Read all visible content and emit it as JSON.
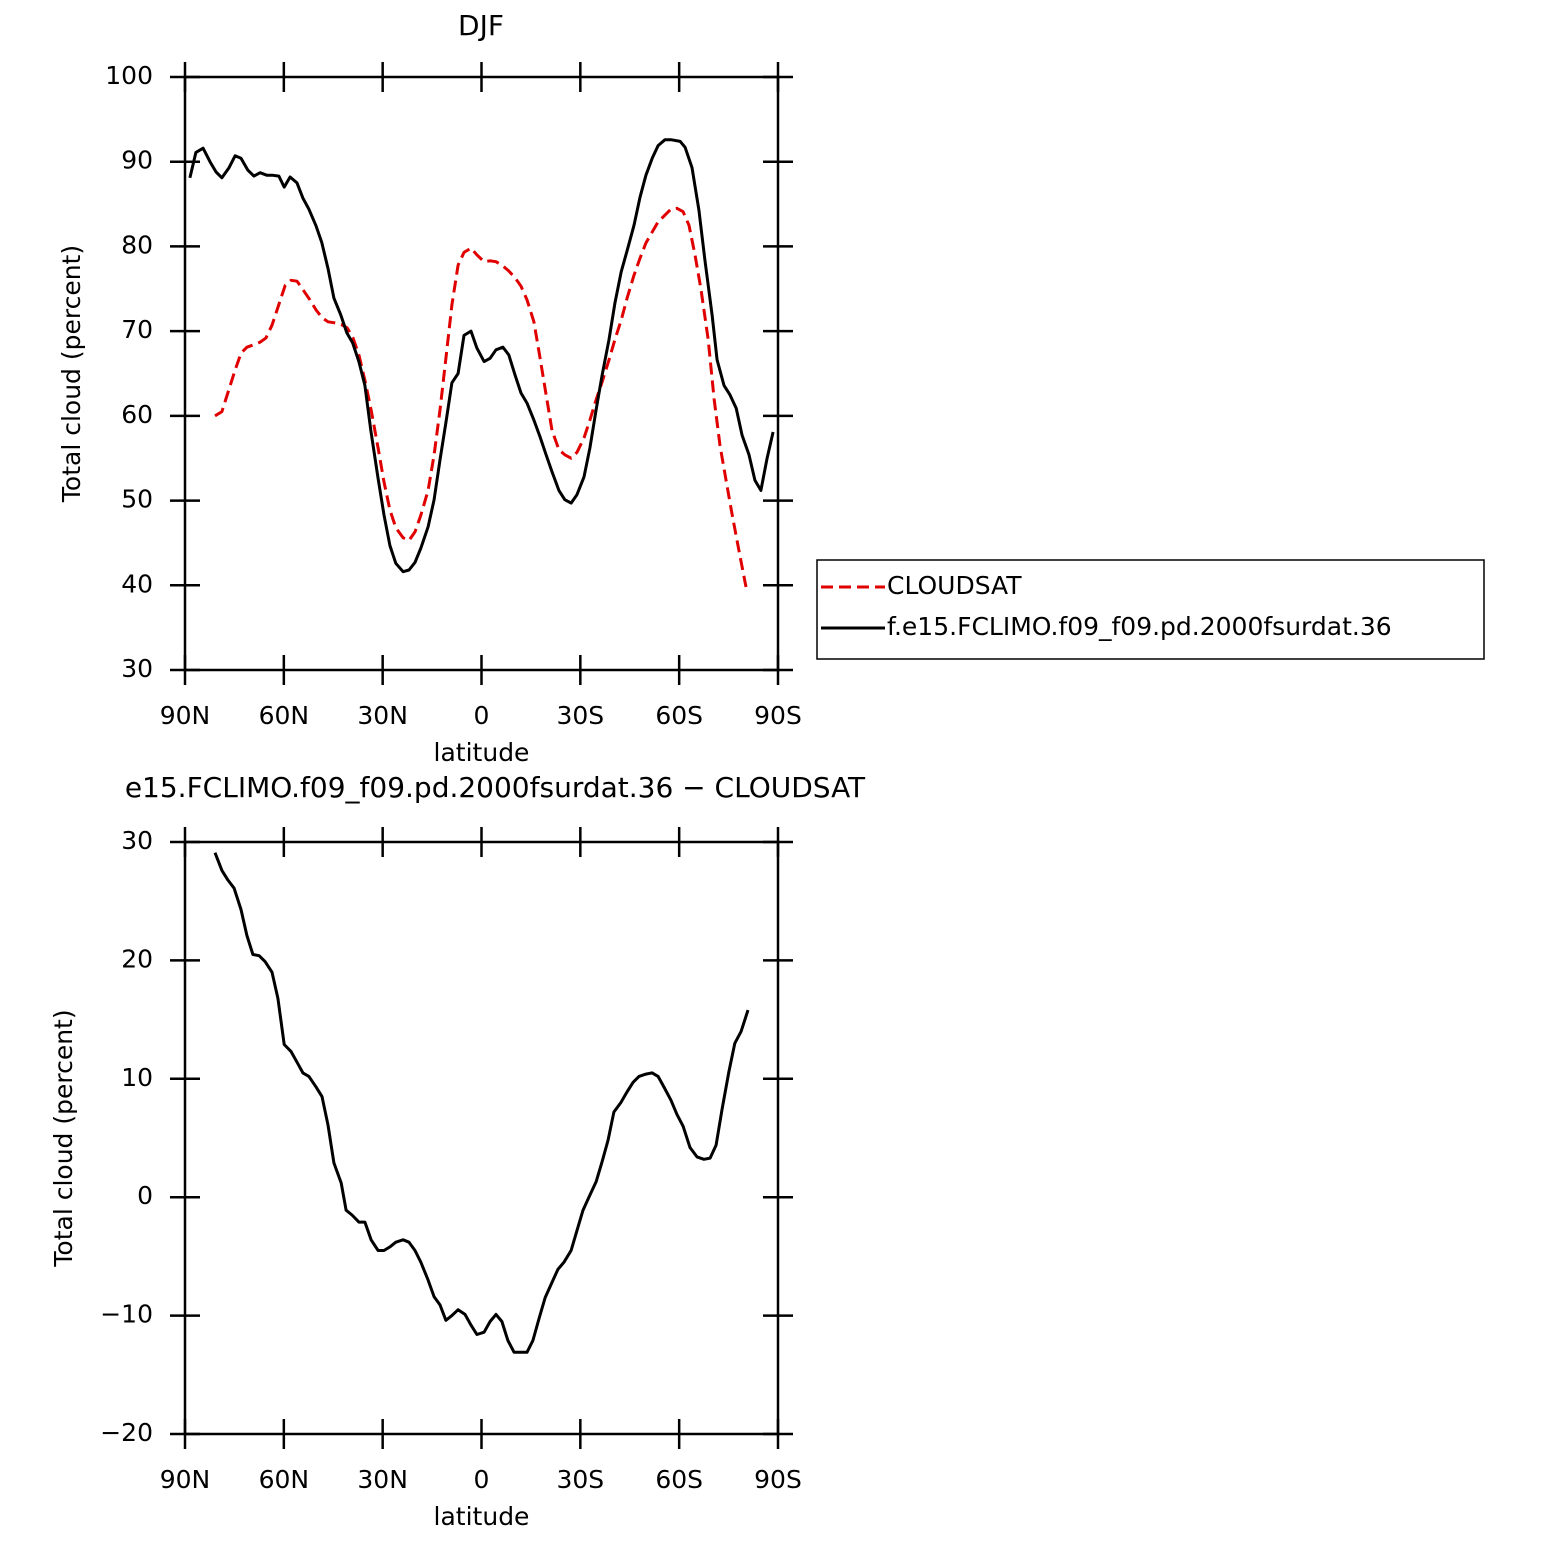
{
  "chart_data": [
    {
      "type": "line",
      "title": "DJF",
      "xlabel": "latitude",
      "ylabel": "Total cloud (percent)",
      "xlim": [
        90,
        -90
      ],
      "xticks": [
        {
          "value": 90,
          "label": "90N"
        },
        {
          "value": 60,
          "label": "60N"
        },
        {
          "value": 30,
          "label": "30N"
        },
        0,
        {
          "value": -30,
          "label": "30S"
        },
        {
          "value": -60,
          "label": "60S"
        },
        {
          "value": -90,
          "label": "90S"
        }
      ],
      "ylim": [
        30,
        100
      ],
      "yticks": [
        30,
        40,
        50,
        60,
        70,
        80,
        90,
        100
      ],
      "legend": "right",
      "series": [
        {
          "name": "CLOUDSAT",
          "color": "#e00000",
          "style": "dashed",
          "x": [
            80.9,
            78.8,
            77.0,
            74.8,
            73.0,
            71.2,
            69.1,
            67.2,
            65.4,
            63.6,
            61.8,
            59.6,
            57.8,
            56.0,
            54.2,
            52.1,
            50.2,
            48.4,
            46.6,
            44.8,
            42.6,
            40.8,
            39.0,
            37.2,
            35.4,
            33.5,
            31.4,
            29.6,
            27.8,
            26.0,
            23.8,
            22.0,
            20.2,
            18.4,
            16.2,
            14.4,
            12.6,
            10.8,
            9.0,
            7.1,
            5.3,
            3.2,
            1.4,
            -0.8,
            -2.6,
            -4.4,
            -6.5,
            -8.3,
            -10.2,
            -12.0,
            -13.8,
            -15.9,
            -17.8,
            -19.6,
            -21.4,
            -23.5,
            -25.3,
            -27.2,
            -29.0,
            -31.1,
            -32.9,
            -34.8,
            -36.6,
            -38.7,
            -40.5,
            -42.4,
            -44.2,
            -46.3,
            -48.1,
            -49.9,
            -51.8,
            -53.6,
            -55.7,
            -57.5,
            -59.3,
            -61.2,
            -63.0,
            -64.8,
            -66.6,
            -68.8,
            -70.6,
            -72.4,
            -74.2,
            -76.0,
            -78.2,
            -80.3
          ],
          "values": [
            60.0,
            60.5,
            62.7,
            65.4,
            67.4,
            68.1,
            68.4,
            68.7,
            69.2,
            70.7,
            72.8,
            75.4,
            76.0,
            75.9,
            74.9,
            73.7,
            72.5,
            71.6,
            71.1,
            71.0,
            70.8,
            70.4,
            69.2,
            67.2,
            64.2,
            60.7,
            56.2,
            52.2,
            48.9,
            46.8,
            45.6,
            45.3,
            46.3,
            48.3,
            51.2,
            55.4,
            60.7,
            66.8,
            73.1,
            77.8,
            79.3,
            79.8,
            79.0,
            78.2,
            78.3,
            78.2,
            77.7,
            77.1,
            76.3,
            75.3,
            73.7,
            71.1,
            66.8,
            62.5,
            58.3,
            56.0,
            55.4,
            55.0,
            55.7,
            57.4,
            59.5,
            61.9,
            64.0,
            66.6,
            69.0,
            71.3,
            73.9,
            76.6,
            78.6,
            80.4,
            81.7,
            82.9,
            83.7,
            84.4,
            84.5,
            84.1,
            82.5,
            79.0,
            75.0,
            69.0,
            62.0,
            56.5,
            52.5,
            48.5,
            44.0,
            39.8
          ]
        },
        {
          "name": "f.e15.FCLIMO.f09_f09.pd.2000fsurdat.36",
          "color": "#000000",
          "style": "solid",
          "x": [
            88.5,
            86.7,
            84.5,
            82.4,
            80.6,
            78.8,
            76.6,
            74.8,
            73.0,
            70.9,
            69.1,
            67.2,
            65.1,
            63.3,
            61.5,
            59.9,
            58.1,
            56.0,
            54.2,
            52.4,
            50.3,
            48.5,
            46.6,
            44.8,
            42.7,
            40.9,
            39.1,
            37.2,
            35.4,
            33.6,
            31.4,
            29.6,
            27.8,
            26.0,
            23.8,
            22.0,
            20.2,
            18.4,
            16.2,
            14.4,
            12.6,
            10.8,
            9.0,
            7.1,
            5.3,
            3.2,
            1.4,
            -0.8,
            -2.6,
            -4.4,
            -6.5,
            -8.3,
            -10.2,
            -12.0,
            -13.8,
            -15.9,
            -17.8,
            -19.6,
            -21.4,
            -23.5,
            -25.3,
            -27.2,
            -29.0,
            -31.1,
            -32.9,
            -34.8,
            -36.6,
            -38.7,
            -40.5,
            -42.4,
            -44.2,
            -46.3,
            -48.1,
            -49.9,
            -51.8,
            -53.6,
            -55.7,
            -57.5,
            -60.3,
            -61.8,
            -63.9,
            -66.0,
            -67.8,
            -70.0,
            -71.5,
            -73.6,
            -75.4,
            -77.3,
            -79.1,
            -81.2,
            -83.0,
            -84.8,
            -86.7,
            -88.5
          ],
          "values": [
            88.1,
            91.1,
            91.6,
            90.0,
            88.8,
            88.1,
            89.3,
            90.7,
            90.4,
            89.0,
            88.3,
            88.7,
            88.4,
            88.4,
            88.3,
            87.0,
            88.2,
            87.5,
            85.7,
            84.4,
            82.5,
            80.5,
            77.4,
            73.9,
            71.9,
            69.8,
            68.6,
            66.4,
            63.6,
            58.3,
            52.6,
            48.3,
            44.7,
            42.6,
            41.6,
            41.8,
            42.7,
            44.4,
            46.9,
            50.1,
            54.8,
            59.2,
            63.9,
            65.0,
            69.5,
            70.0,
            68.0,
            66.4,
            66.8,
            67.8,
            68.1,
            67.2,
            64.8,
            62.7,
            61.5,
            59.5,
            57.5,
            55.4,
            53.4,
            51.2,
            50.1,
            49.7,
            50.7,
            52.8,
            56.2,
            60.7,
            64.8,
            69.0,
            73.3,
            77.0,
            79.5,
            82.5,
            85.8,
            88.4,
            90.4,
            91.9,
            92.6,
            92.6,
            92.4,
            91.7,
            89.3,
            84.3,
            78.4,
            71.9,
            66.6,
            63.6,
            62.5,
            60.9,
            57.7,
            55.4,
            52.4,
            51.2,
            55.0,
            58.1
          ]
        }
      ]
    },
    {
      "type": "line",
      "title": "e15.FCLIMO.f09_f09.pd.2000fsurdat.36 − CLOUDSAT",
      "xlabel": "latitude",
      "ylabel": "Total cloud (percent)",
      "xlim": [
        90,
        -90
      ],
      "xticks": [
        {
          "value": 90,
          "label": "90N"
        },
        {
          "value": 60,
          "label": "60N"
        },
        {
          "value": 30,
          "label": "30N"
        },
        0,
        {
          "value": -30,
          "label": "30S"
        },
        {
          "value": -60,
          "label": "60S"
        },
        {
          "value": -90,
          "label": "90S"
        }
      ],
      "ylim": [
        -20,
        30
      ],
      "yticks": [
        {
          "value": -20,
          "label": "−20"
        },
        {
          "value": -10,
          "label": "−10"
        },
        0,
        10,
        20,
        30
      ],
      "series": [
        {
          "color": "#000000",
          "style": "solid",
          "x": [
            80.9,
            78.8,
            77.0,
            75.1,
            73.0,
            71.2,
            69.4,
            67.5,
            65.7,
            63.6,
            61.8,
            59.9,
            57.8,
            56.0,
            54.2,
            52.4,
            50.2,
            48.4,
            46.6,
            44.8,
            42.6,
            41.1,
            39.3,
            37.2,
            35.4,
            33.5,
            31.4,
            29.6,
            27.8,
            26.0,
            23.8,
            22.0,
            20.2,
            18.4,
            16.2,
            14.4,
            12.6,
            10.8,
            9.0,
            7.1,
            5.0,
            3.2,
            1.4,
            -0.8,
            -2.6,
            -4.4,
            -6.2,
            -8.0,
            -9.9,
            -11.7,
            -13.8,
            -15.6,
            -17.5,
            -19.3,
            -21.4,
            -23.2,
            -25.0,
            -27.2,
            -29.0,
            -30.8,
            -32.6,
            -34.8,
            -36.6,
            -38.4,
            -40.2,
            -42.3,
            -44.2,
            -46.0,
            -47.8,
            -49.9,
            -51.8,
            -53.6,
            -55.4,
            -57.5,
            -59.3,
            -61.2,
            -63.3,
            -65.4,
            -67.5,
            -69.4,
            -71.2,
            -73.0,
            -75.1,
            -76.9,
            -78.8,
            -80.9
          ],
          "values": [
            29.1,
            27.6,
            26.8,
            26.1,
            24.3,
            22.1,
            20.5,
            20.4,
            19.9,
            19.0,
            16.8,
            12.9,
            12.3,
            11.4,
            10.5,
            10.2,
            9.3,
            8.5,
            6.1,
            2.9,
            1.2,
            -1.1,
            -1.5,
            -2.1,
            -2.1,
            -3.6,
            -4.5,
            -4.5,
            -4.2,
            -3.8,
            -3.6,
            -3.8,
            -4.5,
            -5.5,
            -7.0,
            -8.4,
            -9.1,
            -10.4,
            -10.0,
            -9.5,
            -9.9,
            -10.8,
            -11.6,
            -11.4,
            -10.5,
            -9.9,
            -10.5,
            -12.1,
            -13.1,
            -13.1,
            -13.1,
            -12.1,
            -10.2,
            -8.5,
            -7.2,
            -6.1,
            -5.5,
            -4.5,
            -2.8,
            -1.1,
            0.0,
            1.3,
            3.0,
            4.8,
            7.2,
            8.0,
            8.9,
            9.7,
            10.2,
            10.4,
            10.5,
            10.2,
            9.3,
            8.2,
            7.0,
            6.0,
            4.2,
            3.4,
            3.2,
            3.3,
            4.4,
            7.4,
            10.6,
            13.0,
            14.0,
            15.8
          ]
        }
      ]
    }
  ]
}
